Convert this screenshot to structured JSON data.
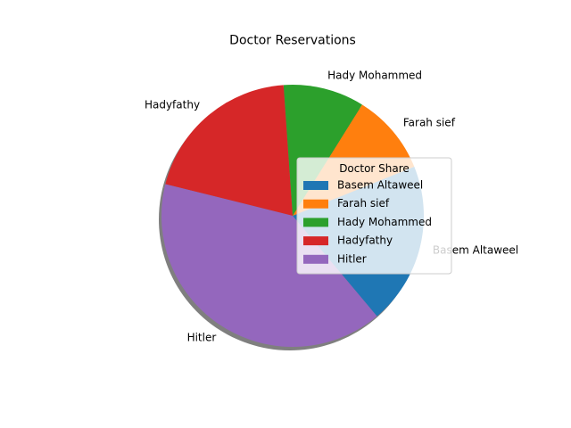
{
  "chart_data": {
    "type": "pie",
    "title": "Doctor Reservations",
    "categories": [
      "Basem Altaweel",
      "Farah sief",
      "Hady Mohammed",
      "Hadyfathy",
      "Hitler"
    ],
    "values": [
      2,
      1,
      1,
      2,
      4
    ],
    "colors": [
      "#1f77b4",
      "#ff7f0e",
      "#2ca02c",
      "#d62728",
      "#9467bd"
    ],
    "start_angle_deg": -50,
    "counterclockwise": true,
    "shadow": true,
    "legend": {
      "title": "Doctor Share",
      "placement": "center-right"
    }
  }
}
